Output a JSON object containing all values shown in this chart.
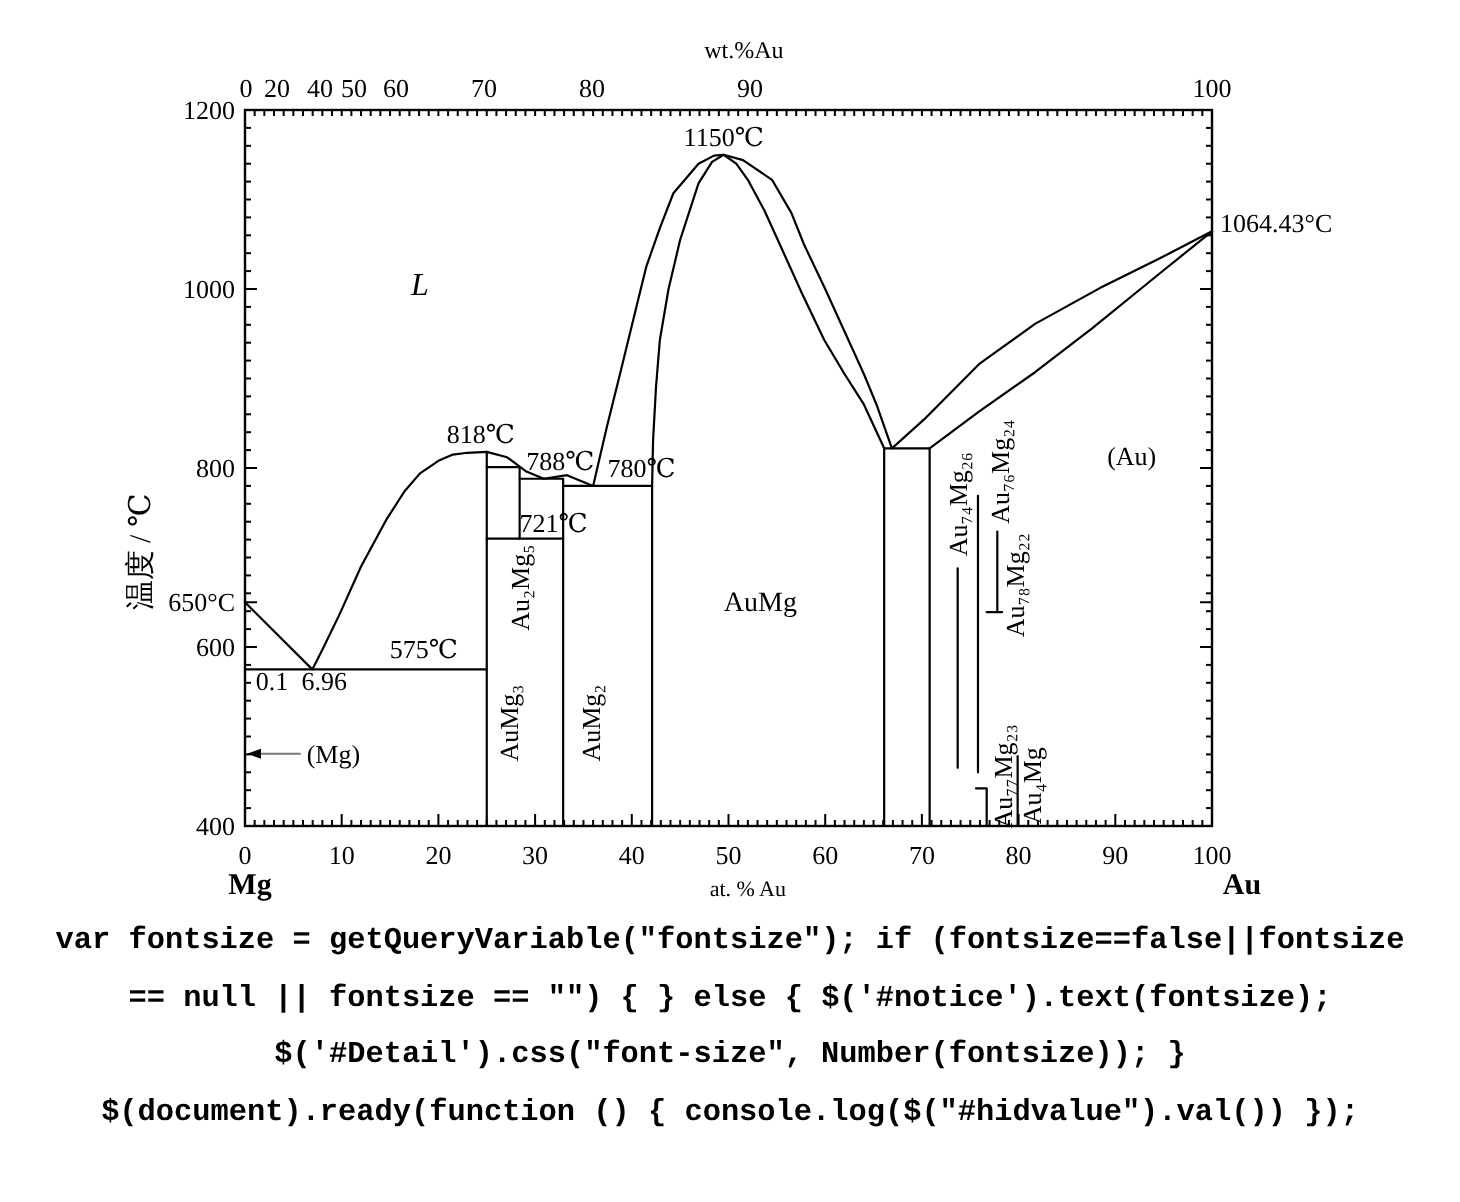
{
  "chart_data": {
    "type": "line",
    "xlabel": "at. % Au",
    "x2label": "wt.%Au",
    "ylabel": "温度 / ℃",
    "xlim": [
      0,
      100
    ],
    "ylim": [
      400,
      1200
    ],
    "xticks": [
      0,
      {
        "value": 1,
        "label": null
      },
      {
        "value": 2,
        "label": null
      },
      {
        "value": 3,
        "label": null
      },
      {
        "value": 4,
        "label": null
      },
      {
        "value": 5,
        "label": null
      },
      {
        "value": 6,
        "label": null
      },
      {
        "value": 7,
        "label": null
      },
      {
        "value": 8,
        "label": null
      },
      {
        "value": 9,
        "label": null
      },
      10,
      {
        "value": 11,
        "label": null
      },
      {
        "value": 12,
        "label": null
      },
      {
        "value": 13,
        "label": null
      },
      {
        "value": 14,
        "label": null
      },
      {
        "value": 15,
        "label": null
      },
      {
        "value": 16,
        "label": null
      },
      {
        "value": 17,
        "label": null
      },
      {
        "value": 18,
        "label": null
      },
      {
        "value": 19,
        "label": null
      },
      20,
      {
        "value": 21,
        "label": null
      },
      {
        "value": 22,
        "label": null
      },
      {
        "value": 23,
        "label": null
      },
      {
        "value": 24,
        "label": null
      },
      {
        "value": 25,
        "label": null
      },
      {
        "value": 26,
        "label": null
      },
      {
        "value": 27,
        "label": null
      },
      {
        "value": 28,
        "label": null
      },
      {
        "value": 29,
        "label": null
      },
      30,
      {
        "value": 31,
        "label": null
      },
      {
        "value": 32,
        "label": null
      },
      {
        "value": 33,
        "label": null
      },
      {
        "value": 34,
        "label": null
      },
      {
        "value": 35,
        "label": null
      },
      {
        "value": 36,
        "label": null
      },
      {
        "value": 37,
        "label": null
      },
      {
        "value": 38,
        "label": null
      },
      {
        "value": 39,
        "label": null
      },
      40,
      {
        "value": 41,
        "label": null
      },
      {
        "value": 42,
        "label": null
      },
      {
        "value": 43,
        "label": null
      },
      {
        "value": 44,
        "label": null
      },
      {
        "value": 45,
        "label": null
      },
      {
        "value": 46,
        "label": null
      },
      {
        "value": 47,
        "label": null
      },
      {
        "value": 48,
        "label": null
      },
      {
        "value": 49,
        "label": null
      },
      50,
      {
        "value": 51,
        "label": null
      },
      {
        "value": 52,
        "label": null
      },
      {
        "value": 53,
        "label": null
      },
      {
        "value": 54,
        "label": null
      },
      {
        "value": 55,
        "label": null
      },
      {
        "value": 56,
        "label": null
      },
      {
        "value": 57,
        "label": null
      },
      {
        "value": 58,
        "label": null
      },
      {
        "value": 59,
        "label": null
      },
      60,
      {
        "value": 61,
        "label": null
      },
      {
        "value": 62,
        "label": null
      },
      {
        "value": 63,
        "label": null
      },
      {
        "value": 64,
        "label": null
      },
      {
        "value": 65,
        "label": null
      },
      {
        "value": 66,
        "label": null
      },
      {
        "value": 67,
        "label": null
      },
      {
        "value": 68,
        "label": null
      },
      {
        "value": 69,
        "label": null
      },
      70,
      {
        "value": 71,
        "label": null
      },
      {
        "value": 72,
        "label": null
      },
      {
        "value": 73,
        "label": null
      },
      {
        "value": 74,
        "label": null
      },
      {
        "value": 75,
        "label": null
      },
      {
        "value": 76,
        "label": null
      },
      {
        "value": 77,
        "label": null
      },
      {
        "value": 78,
        "label": null
      },
      {
        "value": 79,
        "label": null
      },
      80,
      {
        "value": 81,
        "label": null
      },
      {
        "value": 82,
        "label": null
      },
      {
        "value": 83,
        "label": null
      },
      {
        "value": 84,
        "label": null
      },
      {
        "value": 85,
        "label": null
      },
      {
        "value": 86,
        "label": null
      },
      {
        "value": 87,
        "label": null
      },
      {
        "value": 88,
        "label": null
      },
      {
        "value": 89,
        "label": null
      },
      90,
      {
        "value": 91,
        "label": null
      },
      {
        "value": 92,
        "label": null
      },
      {
        "value": 93,
        "label": null
      },
      {
        "value": 94,
        "label": null
      },
      {
        "value": 95,
        "label": null
      },
      {
        "value": 96,
        "label": null
      },
      {
        "value": 97,
        "label": null
      },
      {
        "value": 98,
        "label": null
      },
      {
        "value": 99,
        "label": null
      },
      100
    ],
    "yticks": [
      400,
      {
        "value": 420,
        "label": null
      },
      {
        "value": 440,
        "label": null
      },
      {
        "value": 460,
        "label": null
      },
      {
        "value": 480,
        "label": null
      },
      {
        "value": 500,
        "label": null
      },
      {
        "value": 520,
        "label": null
      },
      {
        "value": 540,
        "label": null
      },
      {
        "value": 560,
        "label": null
      },
      {
        "value": 580,
        "label": null
      },
      600,
      {
        "value": 620,
        "label": null
      },
      {
        "value": 640,
        "label": null
      },
      {
        "value": 650,
        "label": "650°C"
      },
      {
        "value": 660,
        "label": null
      },
      {
        "value": 680,
        "label": null
      },
      {
        "value": 700,
        "label": null
      },
      {
        "value": 720,
        "label": null
      },
      {
        "value": 740,
        "label": null
      },
      {
        "value": 760,
        "label": null
      },
      {
        "value": 780,
        "label": null
      },
      800,
      {
        "value": 820,
        "label": null
      },
      {
        "value": 840,
        "label": null
      },
      {
        "value": 860,
        "label": null
      },
      {
        "value": 880,
        "label": null
      },
      {
        "value": 900,
        "label": null
      },
      {
        "value": 920,
        "label": null
      },
      {
        "value": 940,
        "label": null
      },
      {
        "value": 960,
        "label": null
      },
      {
        "value": 980,
        "label": null
      },
      1000,
      {
        "value": 1020,
        "label": null
      },
      {
        "value": 1040,
        "label": null
      },
      {
        "value": 1060,
        "label": null
      },
      {
        "value": 1080,
        "label": null
      },
      {
        "value": 1100,
        "label": null
      },
      {
        "value": 1120,
        "label": null
      },
      {
        "value": 1140,
        "label": null
      },
      {
        "value": 1160,
        "label": null
      },
      {
        "value": 1180,
        "label": null
      },
      1200
    ],
    "series": [
      {
        "color": "#000000",
        "x": [
          0,
          6.96,
          8,
          9.8,
          12,
          14.6,
          16.5,
          18.1,
          20,
          21.5,
          23,
          25,
          27.1,
          29.1,
          30.9,
          33.3,
          36,
          37.4,
          38.8,
          40.2,
          41.5,
          42.9,
          44.3,
          46.9,
          48.5,
          49.5,
          51.5,
          54.5,
          56.5,
          57.8,
          60,
          62.4,
          64,
          65.3,
          66.9,
          70.2,
          75.9,
          81.7,
          88.4,
          94.2,
          100
        ],
        "values": [
          650,
          575,
          597,
          637,
          690,
          742,
          774,
          794,
          808,
          815,
          817,
          818,
          812,
          796,
          788,
          792,
          780,
          845,
          906,
          968,
          1025,
          1068,
          1107,
          1140,
          1149,
          1150,
          1144,
          1122,
          1085,
          1050,
          1000,
          943,
          905,
          871,
          822,
          854,
          916,
          961,
          1001,
          1032,
          1064.43
        ]
      },
      {
        "color": "#000000",
        "x": [
          0.1,
          25
        ],
        "values": [
          575,
          575
        ]
      },
      {
        "color": "#000000",
        "x": [
          25,
          25
        ],
        "values": [
          818,
          400
        ]
      },
      {
        "color": "#000000",
        "x": [
          25,
          28.4,
          28.4
        ],
        "values": [
          801,
          801,
          721
        ]
      },
      {
        "color": "#000000",
        "x": [
          25,
          32.9
        ],
        "values": [
          721,
          721
        ]
      },
      {
        "color": "#000000",
        "x": [
          28.4,
          32.9,
          32.9
        ],
        "values": [
          788,
          788,
          400
        ]
      },
      {
        "color": "#000000",
        "x": [
          32.9,
          42.1
        ],
        "values": [
          780,
          780
        ]
      },
      {
        "color": "#000000",
        "x": [
          42.1,
          42.1,
          42.2,
          42.5,
          42.9,
          43.8,
          45.0,
          46.9,
          48.3,
          49.5,
          50.8,
          52.0,
          53.7,
          55.3,
          57.6,
          59.9,
          62,
          64.0,
          66.1,
          66.1
        ],
        "values": [
          400,
          780,
          831,
          890,
          943,
          1000,
          1055,
          1118,
          1142,
          1150,
          1140,
          1122,
          1088,
          1050,
          995,
          943,
          905,
          871,
          822,
          400
        ]
      },
      {
        "color": "#000000",
        "x": [
          66.1,
          70.8,
          70.8
        ],
        "values": [
          822,
          822,
          400
        ]
      },
      {
        "color": "#000000",
        "x": [
          70.8,
          75.9,
          81.7,
          87.6,
          94.2,
          100
        ],
        "values": [
          822,
          863,
          907,
          956,
          1014,
          1064.43
        ]
      },
      {
        "color": "#000000",
        "x": [
          73.7,
          73.7
        ],
        "values": [
          688,
          465
        ]
      },
      {
        "color": "#000000",
        "x": [
          75.8,
          75.8
        ],
        "values": [
          769,
          460
        ]
      },
      {
        "color": "#000000",
        "x": [
          75.6,
          76.7,
          76.7
        ],
        "values": [
          442,
          442,
          400
        ]
      },
      {
        "color": "#000000",
        "x": [
          77.8,
          77.8
        ],
        "values": [
          729,
          639
        ]
      },
      {
        "color": "#000000",
        "x": [
          76.7,
          78.3
        ],
        "values": [
          639,
          639
        ]
      },
      {
        "color": "#000000",
        "x": [
          79.9,
          79.9
        ],
        "values": [
          478,
          400
        ]
      }
    ],
    "annotations": [
      {
        "text": "0.1",
        "x": 0.1,
        "y": 575
      },
      {
        "text": "6.96",
        "x": 6.96,
        "y": 575
      },
      {
        "text": "575℃",
        "x": 18.5,
        "y": 575
      },
      {
        "text": "818℃",
        "x": 25,
        "y": 818
      },
      {
        "text": "788℃",
        "x": 32.6,
        "y": 788
      },
      {
        "text": "780℃",
        "x": 41,
        "y": 780
      },
      {
        "text": "721℃",
        "x": 31.9,
        "y": 721
      },
      {
        "text": "1150℃",
        "x": 49.5,
        "y": 1150
      },
      {
        "text": "1064.43°C",
        "x": 100,
        "y": 1064.43
      },
      {
        "text": "AuMg₃",
        "x": 25,
        "y": 515
      },
      {
        "text": "Au₂Mg₅",
        "x": 28.4,
        "y": 721
      },
      {
        "text": "AuMg₂",
        "x": 32.9,
        "y": 515
      },
      {
        "text": "Au₇₄Mg₂₆",
        "x": 73.7,
        "y": 688
      },
      {
        "text": "Au₇₆Mg₂₄",
        "x": 75.8,
        "y": 769
      },
      {
        "text": "Au₇₈Mg₂₂",
        "x": 77.8,
        "y": 669
      },
      {
        "text": "Au₇₇Mg₂₃",
        "x": 76.7,
        "y": 442
      },
      {
        "text": "Au₄Mg",
        "x": 79.9,
        "y": 445
      },
      "L",
      "AuMg",
      "(Au)",
      "(Mg)",
      "Mg",
      "Au",
      "0",
      "20",
      "40",
      "50",
      "60",
      "70",
      "80",
      "90",
      "100",
      "var fontsize = getQueryVariable(\"fontsize\"); if (fontsize==false||fontsize == null || fontsize == \"\") { } else { $('#notice').text(fontsize); $('#Detail').css(\"font-size\", Number(fontsize)); } $(document).ready(function () { console.log($(\"#hidvalue\").val()) });"
    ]
  }
}
